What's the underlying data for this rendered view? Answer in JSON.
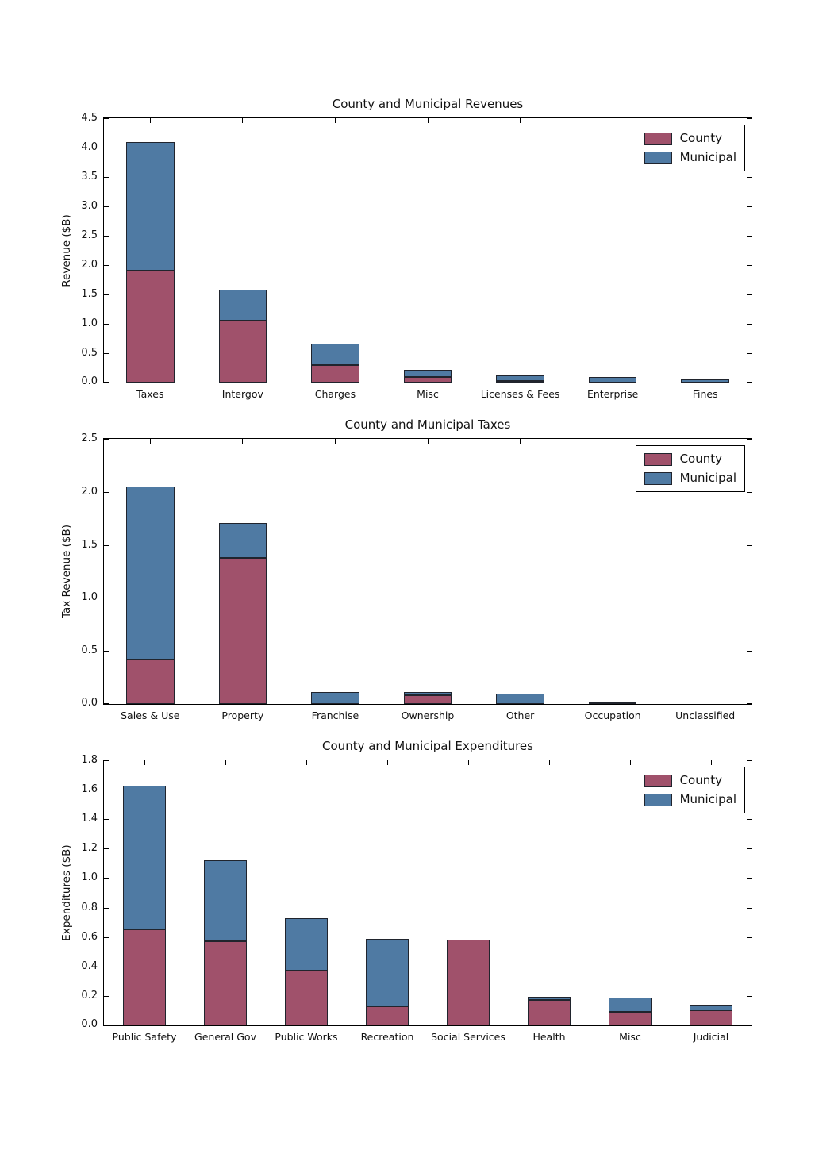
{
  "colors": {
    "county": "#a0516b",
    "municipal": "#4f7aa3",
    "edge": "#20242d"
  },
  "legend": {
    "entries": [
      "County",
      "Municipal"
    ],
    "position": "upper right"
  },
  "chart_data": [
    {
      "type": "bar",
      "stacked": true,
      "title": "County and Municipal Revenues",
      "xlabel": "",
      "ylabel": "Revenue ($B)",
      "ylim": [
        0,
        4.5
      ],
      "ytick_step": 0.5,
      "grid": false,
      "legend_position": "upper right",
      "categories": [
        "Taxes",
        "Intergov",
        "Charges",
        "Misc",
        "Licenses & Fees",
        "Enterprise",
        "Fines"
      ],
      "series": [
        {
          "name": "County",
          "values": [
            1.9,
            1.05,
            0.3,
            0.09,
            0.03,
            0.0,
            0.0
          ]
        },
        {
          "name": "Municipal",
          "values": [
            2.19,
            0.53,
            0.36,
            0.13,
            0.09,
            0.09,
            0.06
          ]
        }
      ]
    },
    {
      "type": "bar",
      "stacked": true,
      "title": "County and Municipal Taxes",
      "xlabel": "",
      "ylabel": "Tax Revenue ($B)",
      "ylim": [
        0,
        2.5
      ],
      "ytick_step": 0.5,
      "grid": false,
      "legend_position": "upper right",
      "categories": [
        "Sales & Use",
        "Property",
        "Franchise",
        "Ownership",
        "Other",
        "Occupation",
        "Unclassified"
      ],
      "series": [
        {
          "name": "County",
          "values": [
            0.42,
            1.38,
            0.0,
            0.08,
            0.0,
            0.005,
            0.0
          ]
        },
        {
          "name": "Municipal",
          "values": [
            1.63,
            0.33,
            0.11,
            0.03,
            0.1,
            0.005,
            0.0
          ]
        }
      ]
    },
    {
      "type": "bar",
      "stacked": true,
      "title": "County and Municipal Expenditures",
      "xlabel": "",
      "ylabel": "Expenditures ($B)",
      "ylim": [
        0,
        1.8
      ],
      "ytick_step": 0.2,
      "grid": false,
      "legend_position": "upper right",
      "categories": [
        "Public Safety",
        "General Gov",
        "Public Works",
        "Recreation",
        "Social Services",
        "Health",
        "Misc",
        "Judicial"
      ],
      "series": [
        {
          "name": "County",
          "values": [
            0.65,
            0.57,
            0.37,
            0.13,
            0.58,
            0.17,
            0.09,
            0.1
          ]
        },
        {
          "name": "Municipal",
          "values": [
            0.98,
            0.55,
            0.36,
            0.46,
            0.0,
            0.025,
            0.1,
            0.04
          ]
        }
      ]
    }
  ]
}
